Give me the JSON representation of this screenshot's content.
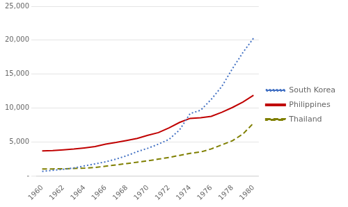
{
  "chart_data": {
    "type": "line",
    "x": [
      1960,
      1961,
      1962,
      1963,
      1964,
      1965,
      1966,
      1967,
      1968,
      1969,
      1970,
      1971,
      1972,
      1973,
      1974,
      1975,
      1976,
      1977,
      1978,
      1979,
      1980
    ],
    "series": [
      {
        "name": "South Korea",
        "color": "#4472C4",
        "line_style": "dotted",
        "values": [
          700,
          850,
          1000,
          1200,
          1500,
          1800,
          2100,
          2500,
          3000,
          3600,
          4100,
          4700,
          5400,
          6800,
          9200,
          9700,
          11300,
          13200,
          15800,
          18200,
          20300
        ]
      },
      {
        "name": "Philippines",
        "color": "#C00000",
        "line_style": "solid",
        "values": [
          3700,
          3750,
          3850,
          3980,
          4150,
          4350,
          4700,
          4950,
          5250,
          5550,
          6000,
          6400,
          7100,
          7900,
          8500,
          8600,
          8800,
          9400,
          10100,
          10900,
          11900
        ]
      },
      {
        "name": "Thailand",
        "color": "#7F7F00",
        "line_style": "dashed",
        "values": [
          1050,
          1060,
          1080,
          1120,
          1180,
          1280,
          1450,
          1650,
          1850,
          2050,
          2250,
          2500,
          2750,
          3050,
          3350,
          3550,
          4000,
          4600,
          5200,
          6200,
          7800
        ]
      }
    ],
    "xlim": [
      1959.5,
      1980.5
    ],
    "xticks": [
      1960,
      1962,
      1964,
      1966,
      1968,
      1970,
      1972,
      1974,
      1976,
      1978,
      1980
    ],
    "ylim": [
      0,
      25000
    ],
    "yticks": [
      {
        "value": 0,
        "label": "-"
      },
      {
        "value": 5000,
        "label": "5,000"
      },
      {
        "value": 10000,
        "label": "10,000"
      },
      {
        "value": 15000,
        "label": "15,000"
      },
      {
        "value": 20000,
        "label": "20,000"
      },
      {
        "value": 25000,
        "label": "25,000"
      }
    ],
    "grid": "y",
    "legend": "right"
  }
}
